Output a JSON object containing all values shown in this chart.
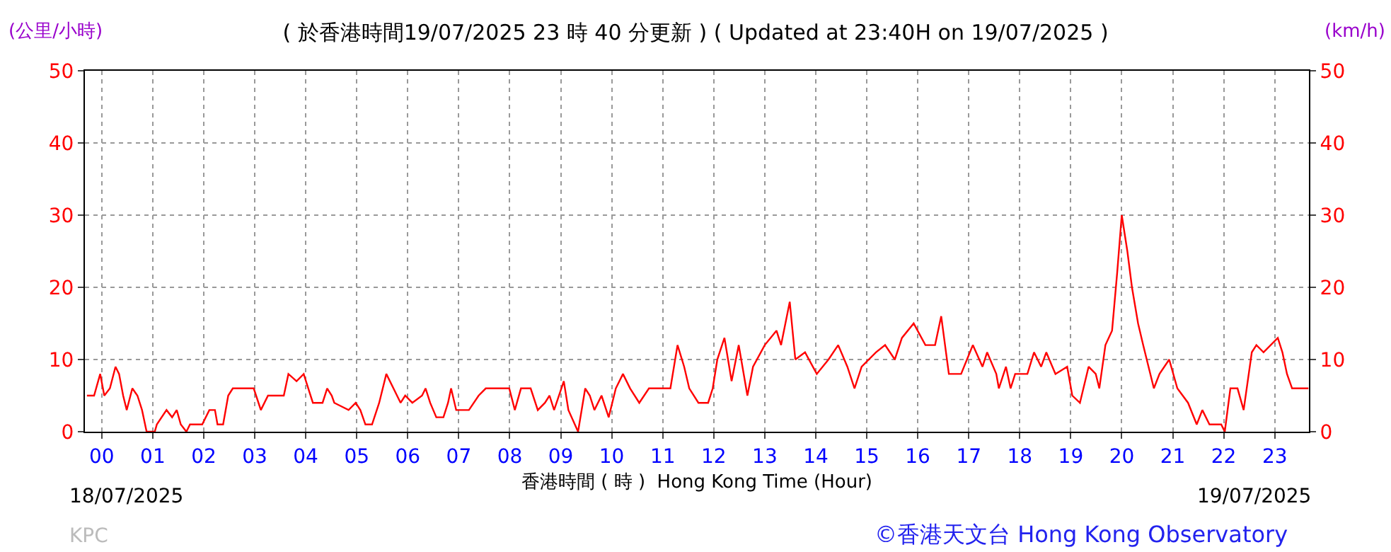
{
  "chart_data": {
    "type": "line",
    "title": "( 於香港時間19/07/2025 23 時 40 分更新 ) ( Updated at 23:40H on 19/07/2025 )",
    "xlabel": "香港時間 ( 時 )  Hong Kong Time (Hour)",
    "ylabel": "(公里/小時)",
    "y2label": "(km/h)",
    "annotations": [
      "18/07/2025",
      "19/07/2025",
      "KPC",
      "©香港天文台 Hong Kong Observatory"
    ],
    "xlim": [
      -0.33,
      23.67
    ],
    "xticks": [
      {
        "value": 0,
        "label": "00"
      },
      {
        "value": 1,
        "label": "01"
      },
      {
        "value": 2,
        "label": "02"
      },
      {
        "value": 3,
        "label": "03"
      },
      {
        "value": 4,
        "label": "04"
      },
      {
        "value": 5,
        "label": "05"
      },
      {
        "value": 6,
        "label": "06"
      },
      {
        "value": 7,
        "label": "07"
      },
      {
        "value": 8,
        "label": "08"
      },
      {
        "value": 9,
        "label": "09"
      },
      {
        "value": 10,
        "label": "10"
      },
      {
        "value": 11,
        "label": "11"
      },
      {
        "value": 12,
        "label": "12"
      },
      {
        "value": 13,
        "label": "13"
      },
      {
        "value": 14,
        "label": "14"
      },
      {
        "value": 15,
        "label": "15"
      },
      {
        "value": 16,
        "label": "16"
      },
      {
        "value": 17,
        "label": "17"
      },
      {
        "value": 18,
        "label": "18"
      },
      {
        "value": 19,
        "label": "19"
      },
      {
        "value": 20,
        "label": "20"
      },
      {
        "value": 21,
        "label": "21"
      },
      {
        "value": 22,
        "label": "22"
      },
      {
        "value": 23,
        "label": "23"
      }
    ],
    "ylim": [
      0,
      50
    ],
    "yticks": [
      0,
      10,
      20,
      30,
      40,
      50
    ],
    "y2lim": [
      0,
      50
    ],
    "y2ticks": [
      0,
      10,
      20,
      30,
      40,
      50
    ],
    "grid": true,
    "legend": false,
    "marker": "none",
    "line_style": "solid",
    "series": [
      {
        "color": "#ff0000",
        "x": [
          -0.29,
          -0.15,
          -0.03,
          0.05,
          0.16,
          0.27,
          0.34,
          0.42,
          0.49,
          0.6,
          0.7,
          0.79,
          0.88,
          1.04,
          1.08,
          1.27,
          1.38,
          1.47,
          1.55,
          1.66,
          1.73,
          1.97,
          2.11,
          2.22,
          2.27,
          2.38,
          2.48,
          2.57,
          2.75,
          2.98,
          3.12,
          3.26,
          3.57,
          3.66,
          3.82,
          3.96,
          4.05,
          4.14,
          4.33,
          4.42,
          4.51,
          4.56,
          4.84,
          4.98,
          5.07,
          5.17,
          5.3,
          5.44,
          5.58,
          5.72,
          5.86,
          5.95,
          6.09,
          6.28,
          6.35,
          6.44,
          6.56,
          6.7,
          6.79,
          6.85,
          6.95,
          7.2,
          7.39,
          7.53,
          7.99,
          8.1,
          8.22,
          8.41,
          8.55,
          8.69,
          8.78,
          8.87,
          9.06,
          9.15,
          9.34,
          9.48,
          9.57,
          9.66,
          9.8,
          9.94,
          10.08,
          10.22,
          10.36,
          10.54,
          10.73,
          11.01,
          11.15,
          11.29,
          11.42,
          11.52,
          11.7,
          11.89,
          11.98,
          12.07,
          12.21,
          12.35,
          12.49,
          12.66,
          12.77,
          13.0,
          13.23,
          13.32,
          13.49,
          13.6,
          13.79,
          14.02,
          14.25,
          14.44,
          14.62,
          14.76,
          14.9,
          15.18,
          15.36,
          15.55,
          15.69,
          15.92,
          16.15,
          16.34,
          16.46,
          16.61,
          16.85,
          17.08,
          17.27,
          17.36,
          17.54,
          17.59,
          17.73,
          17.82,
          17.91,
          18.15,
          18.28,
          18.42,
          18.52,
          18.7,
          18.93,
          19.03,
          19.18,
          19.35,
          19.49,
          19.56,
          19.68,
          19.81,
          19.91,
          20.0,
          20.11,
          20.2,
          20.32,
          20.42,
          20.63,
          20.74,
          20.93,
          21.09,
          21.3,
          21.47,
          21.58,
          21.72,
          21.95,
          22.02,
          22.13,
          22.27,
          22.39,
          22.55,
          22.64,
          22.78,
          23.06,
          23.15,
          23.24,
          23.34,
          23.61,
          23.66
        ],
        "values": [
          5,
          5,
          8,
          5,
          6,
          9,
          8,
          5,
          3,
          6,
          5,
          3,
          0,
          0,
          1,
          3,
          2,
          3,
          1,
          0,
          1,
          1,
          3,
          3,
          1,
          1,
          5,
          6,
          6,
          6,
          3,
          5,
          5,
          8,
          7,
          8,
          6,
          4,
          4,
          6,
          5,
          4,
          3,
          4,
          3,
          1,
          1,
          4,
          8,
          6,
          4,
          5,
          4,
          5,
          6,
          4,
          2,
          2,
          4,
          6,
          3,
          3,
          5,
          6,
          6,
          3,
          6,
          6,
          3,
          4,
          5,
          3,
          7,
          3,
          0,
          6,
          5,
          3,
          5,
          2,
          6,
          8,
          6,
          4,
          6,
          6,
          6,
          12,
          9,
          6,
          4,
          4,
          6,
          10,
          13,
          7,
          12,
          5,
          9,
          12,
          14,
          12,
          18,
          10,
          11,
          8,
          10,
          12,
          9,
          6,
          9,
          11,
          12,
          10,
          13,
          15,
          12,
          12,
          16,
          8,
          8,
          12,
          9,
          11,
          8,
          6,
          9,
          6,
          8,
          8,
          11,
          9,
          11,
          8,
          9,
          5,
          4,
          9,
          8,
          6,
          12,
          14,
          22,
          30,
          25,
          20,
          15,
          12,
          6,
          8,
          10,
          6,
          4,
          1,
          3,
          1,
          1,
          0,
          6,
          6,
          3,
          11,
          12,
          11,
          13,
          11,
          8,
          6,
          6,
          6
        ]
      }
    ]
  }
}
